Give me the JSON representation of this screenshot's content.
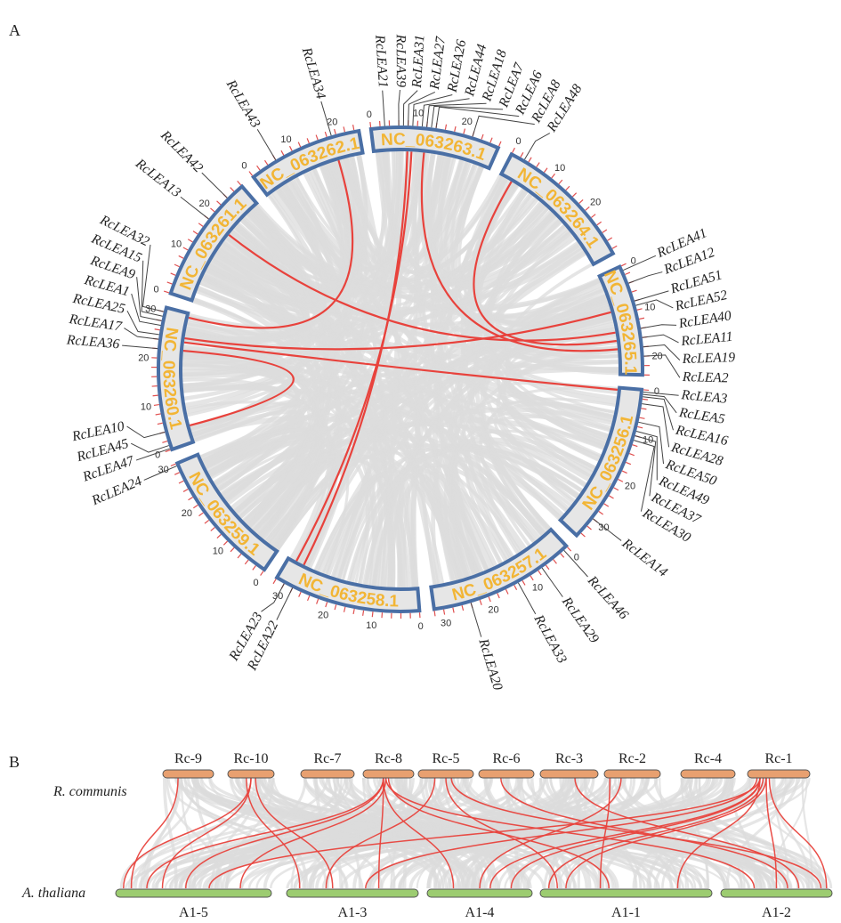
{
  "panel_a_label": "A",
  "panel_b_label": "B",
  "colors": {
    "box_fill": "#e6e6e6",
    "box_stroke": "#4a6fa5",
    "chr_label": "#f2b535",
    "link_red": "#e8423c",
    "link_gray": "#dcdcdc",
    "tick": "#e05050",
    "rc_bar": "#e8a070",
    "at_bar": "#9ccc70"
  },
  "circos": {
    "chromosomes": [
      {
        "name": "NC_063263.1",
        "length": 28,
        "ticks": [
          "0",
          "10",
          "20"
        ]
      },
      {
        "name": "NC_063264.1",
        "length": 31,
        "ticks": [
          "0",
          "10",
          "20"
        ]
      },
      {
        "name": "NC_063265.1",
        "length": 24,
        "ticks": [
          "0",
          "10",
          "20"
        ]
      },
      {
        "name": "NC_063256.1",
        "length": 35,
        "ticks": [
          "0",
          "10",
          "20",
          "30"
        ]
      },
      {
        "name": "NC_063257.1",
        "length": 32,
        "ticks": [
          "0",
          "10",
          "20",
          "30"
        ]
      },
      {
        "name": "NC_063258.1",
        "length": 32,
        "ticks": [
          "0",
          "10",
          "20",
          "30"
        ]
      },
      {
        "name": "NC_063259.1",
        "length": 30,
        "ticks": [
          "0",
          "10",
          "20",
          "30"
        ]
      },
      {
        "name": "NC_063260.1",
        "length": 31,
        "ticks": [
          "0",
          "10",
          "20",
          "30"
        ]
      },
      {
        "name": "NC_063261.1",
        "length": 28,
        "ticks": [
          "0",
          "10",
          "20"
        ]
      },
      {
        "name": "NC_063262.1",
        "length": 25,
        "ticks": [
          "0",
          "10",
          "20"
        ]
      }
    ],
    "genes": [
      {
        "name": "RcLEA21",
        "chr": 0,
        "pos": 3
      },
      {
        "name": "RcLEA39",
        "chr": 0,
        "pos": 6
      },
      {
        "name": "RcLEA31",
        "chr": 0,
        "pos": 7
      },
      {
        "name": "RcLEA27",
        "chr": 0,
        "pos": 8
      },
      {
        "name": "RcLEA26",
        "chr": 0,
        "pos": 9
      },
      {
        "name": "RcLEA44",
        "chr": 0,
        "pos": 11
      },
      {
        "name": "RcLEA18",
        "chr": 0,
        "pos": 12
      },
      {
        "name": "RcLEA7",
        "chr": 0,
        "pos": 13
      },
      {
        "name": "RcLEA6",
        "chr": 0,
        "pos": 14
      },
      {
        "name": "RcLEA8",
        "chr": 0,
        "pos": 22
      },
      {
        "name": "RcLEA48",
        "chr": 1,
        "pos": 3
      },
      {
        "name": "RcLEA41",
        "chr": 2,
        "pos": 1
      },
      {
        "name": "RcLEA12",
        "chr": 2,
        "pos": 4
      },
      {
        "name": "RcLEA51",
        "chr": 2,
        "pos": 8
      },
      {
        "name": "RcLEA52",
        "chr": 2,
        "pos": 9
      },
      {
        "name": "RcLEA40",
        "chr": 2,
        "pos": 14
      },
      {
        "name": "RcLEA11",
        "chr": 2,
        "pos": 16
      },
      {
        "name": "RcLEA19",
        "chr": 2,
        "pos": 18
      },
      {
        "name": "RcLEA2",
        "chr": 2,
        "pos": 20
      },
      {
        "name": "RcLEA3",
        "chr": 3,
        "pos": 0.5
      },
      {
        "name": "RcLEA5",
        "chr": 3,
        "pos": 1
      },
      {
        "name": "RcLEA16",
        "chr": 3,
        "pos": 1.5
      },
      {
        "name": "RcLEA28",
        "chr": 3,
        "pos": 3
      },
      {
        "name": "RcLEA50",
        "chr": 3,
        "pos": 7
      },
      {
        "name": "RcLEA49",
        "chr": 3,
        "pos": 9
      },
      {
        "name": "RcLEA37",
        "chr": 3,
        "pos": 10
      },
      {
        "name": "RcLEA30",
        "chr": 3,
        "pos": 11
      },
      {
        "name": "RcLEA14",
        "chr": 3,
        "pos": 30
      },
      {
        "name": "RcLEA46",
        "chr": 4,
        "pos": 1
      },
      {
        "name": "RcLEA29",
        "chr": 4,
        "pos": 7
      },
      {
        "name": "RcLEA33",
        "chr": 4,
        "pos": 13
      },
      {
        "name": "RcLEA20",
        "chr": 4,
        "pos": 24
      },
      {
        "name": "RcLEA22",
        "chr": 5,
        "pos": 28
      },
      {
        "name": "RcLEA23",
        "chr": 5,
        "pos": 30
      },
      {
        "name": "RcLEA24",
        "chr": 6,
        "pos": 29.5
      },
      {
        "name": "RcLEA47",
        "chr": 7,
        "pos": 0.3
      },
      {
        "name": "RcLEA45",
        "chr": 7,
        "pos": 1
      },
      {
        "name": "RcLEA10",
        "chr": 7,
        "pos": 4
      },
      {
        "name": "RcLEA36",
        "chr": 7,
        "pos": 22
      },
      {
        "name": "RcLEA17",
        "chr": 7,
        "pos": 24
      },
      {
        "name": "RcLEA25",
        "chr": 7,
        "pos": 25
      },
      {
        "name": "RcLEA1",
        "chr": 7,
        "pos": 27
      },
      {
        "name": "RcLEA9",
        "chr": 7,
        "pos": 28
      },
      {
        "name": "RcLEA15",
        "chr": 7,
        "pos": 29
      },
      {
        "name": "RcLEA32",
        "chr": 7,
        "pos": 30
      },
      {
        "name": "RcLEA13",
        "chr": 8,
        "pos": 18
      },
      {
        "name": "RcLEA42",
        "chr": 8,
        "pos": 24
      },
      {
        "name": "RcLEA43",
        "chr": 9,
        "pos": 6
      },
      {
        "name": "RcLEA34",
        "chr": 9,
        "pos": 19
      }
    ],
    "links": [
      [
        "RcLEA34",
        "RcLEA32"
      ],
      [
        "RcLEA27",
        "RcLEA22"
      ],
      [
        "RcLEA26",
        "RcLEA23"
      ],
      [
        "RcLEA18",
        "RcLEA19"
      ],
      [
        "RcLEA48",
        "RcLEA11"
      ],
      [
        "RcLEA13",
        "RcLEA40"
      ],
      [
        "RcLEA25",
        "RcLEA52"
      ],
      [
        "RcLEA17",
        "RcLEA3"
      ],
      [
        "RcLEA36",
        "RcLEA10"
      ]
    ]
  },
  "synteny": {
    "species_top": "R. communis",
    "species_bottom": "A. thaliana",
    "top_chromosomes": [
      "Rc-9",
      "Rc-10",
      "Rc-7",
      "Rc-8",
      "Rc-5",
      "Rc-6",
      "Rc-3",
      "Rc-2",
      "Rc-4",
      "Rc-1"
    ],
    "bottom_chromosomes": [
      "A1-5",
      "A1-3",
      "A1-4",
      "A1-1",
      "A1-2"
    ],
    "red_links": [
      [
        "Rc-10",
        0.5,
        "A1-5",
        0.05
      ],
      [
        "Rc-10",
        0.5,
        "A1-5",
        0.3
      ],
      [
        "Rc-10",
        0.4,
        "A1-3",
        0.1
      ],
      [
        "Rc-10",
        0.6,
        "A1-3",
        0.35
      ],
      [
        "Rc-9",
        0.3,
        "A1-5",
        0.1
      ],
      [
        "Rc-8",
        0.4,
        "A1-5",
        0.2
      ],
      [
        "Rc-8",
        0.4,
        "A1-5",
        0.45
      ],
      [
        "Rc-8",
        0.45,
        "A1-5",
        0.8
      ],
      [
        "Rc-8",
        0.4,
        "A1-3",
        0.7
      ],
      [
        "Rc-8",
        0.4,
        "A1-4",
        0.25
      ],
      [
        "Rc-8",
        0.5,
        "A1-1",
        0.4
      ],
      [
        "Rc-8",
        0.45,
        "A1-2",
        0.3
      ],
      [
        "Rc-5",
        0.3,
        "A1-3",
        0.3
      ],
      [
        "Rc-5",
        0.5,
        "A1-1",
        0.1
      ],
      [
        "Rc-5",
        0.6,
        "A1-2",
        0.9
      ],
      [
        "Rc-6",
        0.4,
        "A1-2",
        0.6
      ],
      [
        "Rc-2",
        0.1,
        "A1-1",
        0.35
      ],
      [
        "Rc-2",
        0.3,
        "A1-4",
        0.5
      ],
      [
        "Rc-1",
        0.2,
        "A1-5",
        0.6
      ],
      [
        "Rc-1",
        0.15,
        "A1-3",
        0.6
      ],
      [
        "Rc-1",
        0.2,
        "A1-4",
        0.6
      ],
      [
        "Rc-1",
        0.2,
        "A1-4",
        0.8
      ],
      [
        "Rc-1",
        0.25,
        "A1-1",
        0.05
      ],
      [
        "Rc-1",
        0.3,
        "A1-1",
        0.15
      ],
      [
        "Rc-1",
        0.2,
        "A1-1",
        0.8
      ],
      [
        "Rc-1",
        0.3,
        "A1-2",
        0.5
      ],
      [
        "Rc-1",
        0.35,
        "A1-2",
        0.95
      ],
      [
        "Rc-3",
        0.6,
        "A1-2",
        0.7
      ]
    ]
  }
}
